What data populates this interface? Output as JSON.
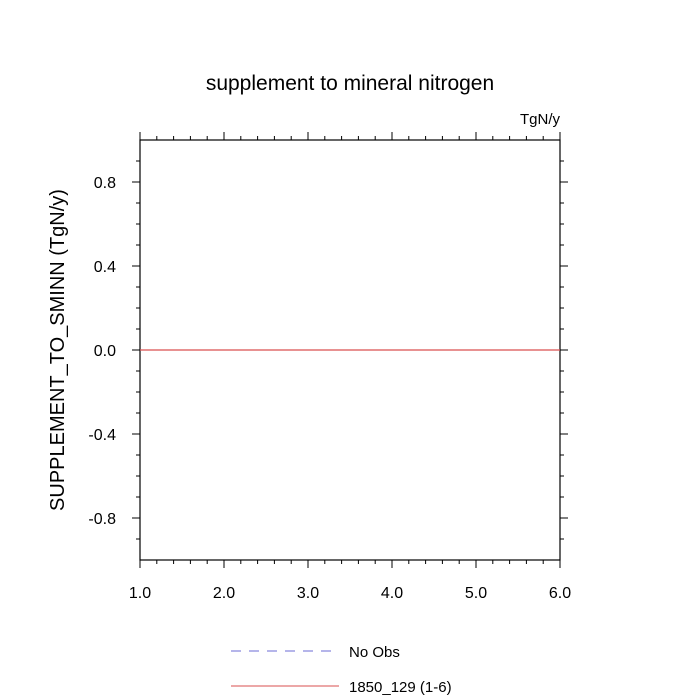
{
  "chart_data": {
    "type": "line",
    "title": "supplement to mineral nitrogen",
    "units_label": "TgN/y",
    "ylabel": "SUPPLEMENT_TO_SMINN  (TgN/y)",
    "xlabel": "",
    "xlim": [
      1.0,
      6.0
    ],
    "ylim": [
      -1.0,
      1.0
    ],
    "x_ticks": [
      1.0,
      2.0,
      3.0,
      4.0,
      5.0,
      6.0
    ],
    "x_tick_labels": [
      "1.0",
      "2.0",
      "3.0",
      "4.0",
      "5.0",
      "6.0"
    ],
    "y_ticks": [
      -0.8,
      -0.4,
      0.0,
      0.4,
      0.8
    ],
    "y_tick_labels": [
      "-0.8",
      "-0.4",
      "0.0",
      "0.4",
      "0.8"
    ],
    "grid": false,
    "legend_position": "bottom",
    "series": [
      {
        "name": "No Obs",
        "color": "#6b6bd6",
        "dash": "dashed",
        "x": [],
        "y": []
      },
      {
        "name": "1850_129 (1-6)",
        "color": "#d94f4f",
        "dash": "solid",
        "x": [
          1.0,
          2.0,
          3.0,
          4.0,
          5.0,
          6.0
        ],
        "y": [
          0.0,
          0.0,
          0.0,
          0.0,
          0.0,
          0.0
        ]
      }
    ]
  }
}
